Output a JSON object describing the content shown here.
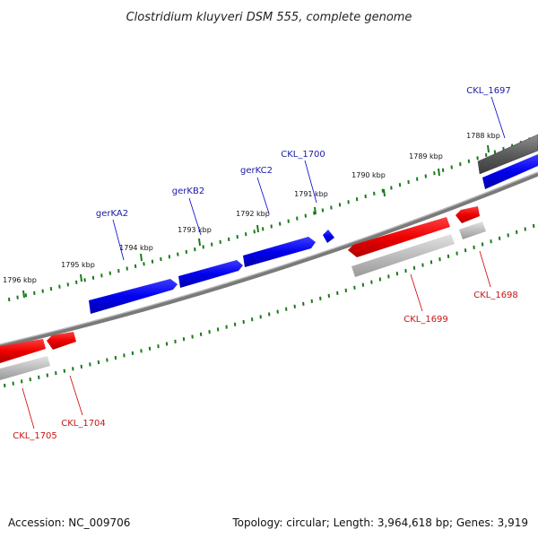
{
  "title": "Clostridium kluyveri DSM 555, complete genome",
  "footer": {
    "accession_label": "Accession:",
    "accession": "NC_009706",
    "topology_label": "Topology:",
    "topology": "circular",
    "length_label": "Length:",
    "length": "3,964,618 bp",
    "genes_label": "Genes:",
    "genes": "3,919"
  },
  "ticks": [
    {
      "label": "1788 kbp"
    },
    {
      "label": "1789 kbp"
    },
    {
      "label": "1790 kbp"
    },
    {
      "label": "1791 kbp"
    },
    {
      "label": "1792 kbp"
    },
    {
      "label": "1793 kbp"
    },
    {
      "label": "1794 kbp"
    },
    {
      "label": "1795 kbp"
    },
    {
      "label": "1796 kbp"
    }
  ],
  "forward_genes": [
    "CKL_1697",
    "CKL_1700",
    "gerKC2",
    "gerKB2",
    "gerKA2"
  ],
  "reverse_genes": [
    "CKL_1698",
    "CKL_1699",
    "CKL_1704",
    "CKL_1705"
  ],
  "colors": {
    "forward": "#0000e6",
    "reverse": "#e60000",
    "backbone": "#7a7a7a",
    "tick": "#1a7a1a",
    "label_forward": "#1a1aa8",
    "label_reverse": "#c81414"
  }
}
